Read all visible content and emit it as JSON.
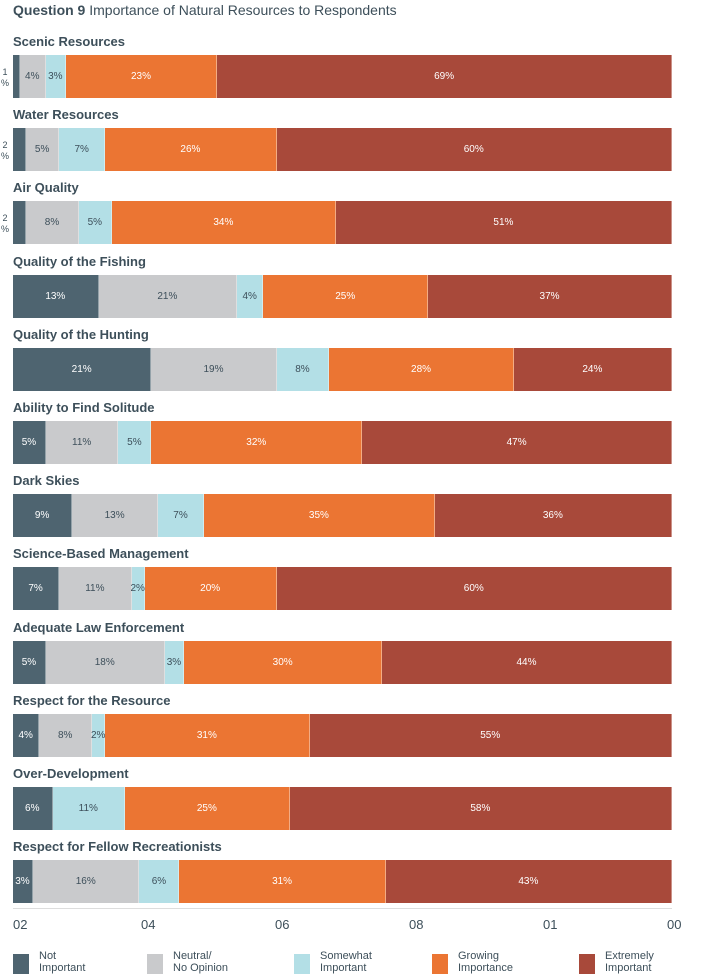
{
  "title_bold": "Question 9",
  "title_rest": " Importance of Natural Resources to Respondents",
  "chart_data": {
    "type": "bar",
    "orientation": "horizontal",
    "stacked": true,
    "title": "Question 9 Importance of Natural Resources to Respondents",
    "categories": [
      "Scenic Resources",
      "Water Resources",
      "Air Quality",
      "Quality of the Fishing",
      "Quality of the Hunting",
      "Ability to Find Solitude",
      "Dark Skies",
      "Science-Based Management",
      "Adequate Law Enforcement",
      "Respect for the Resource",
      "Over-Development",
      "Respect for Fellow Recreationists"
    ],
    "series": [
      {
        "name": "Not Important",
        "legend": [
          "Not",
          "Important"
        ],
        "color": "#4e6470",
        "text_color": "#ffffff",
        "values": [
          1,
          2,
          2,
          13,
          21,
          5,
          9,
          7,
          5,
          4,
          6,
          3
        ]
      },
      {
        "name": "Neutral/ No Opinion",
        "legend": [
          "Neutral/",
          "No Opinion"
        ],
        "color": "#c9cacc",
        "text_color": "#3d4f5a",
        "values": [
          4,
          5,
          8,
          21,
          19,
          11,
          13,
          11,
          18,
          8,
          0,
          16
        ]
      },
      {
        "name": "Somewhat Important",
        "legend": [
          "Somewhat",
          "Important"
        ],
        "color": "#b3dfe6",
        "text_color": "#3d4f5a",
        "values": [
          3,
          7,
          5,
          4,
          8,
          5,
          7,
          2,
          3,
          2,
          11,
          6
        ]
      },
      {
        "name": "Growing Importance",
        "legend": [
          "Growing",
          "Importance"
        ],
        "color": "#eb7533",
        "text_color": "#ffffff",
        "values": [
          23,
          26,
          34,
          25,
          28,
          32,
          35,
          20,
          30,
          31,
          25,
          31
        ]
      },
      {
        "name": "Extremely Important",
        "legend": [
          "Extremely",
          "Important"
        ],
        "color": "#a8493a",
        "text_color": "#ffffff",
        "values": [
          69,
          60,
          51,
          37,
          24,
          47,
          36,
          60,
          44,
          55,
          58,
          43
        ]
      }
    ],
    "value_suffix": "%",
    "xlim": [
      0,
      100
    ],
    "x_tick_labels": [
      "02",
      "04",
      "06",
      "08",
      "01",
      "00"
    ],
    "legend_position": "bottom",
    "grid": false
  }
}
